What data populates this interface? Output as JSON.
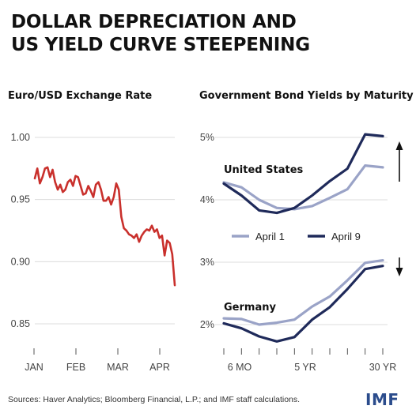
{
  "header": {
    "title_line1": "DOLLAR DEPRECIATION AND",
    "title_line2": "US YIELD CURVE STEEPENING"
  },
  "colors": {
    "red": "#c9302c",
    "light_blue": "#9aa3c7",
    "navy": "#1f2a5a",
    "grid": "#dcdcdc",
    "imf_blue": "#2b4c8c"
  },
  "chart_data": [
    {
      "type": "line",
      "title": "Euro/USD Exchange Rate",
      "ylim": [
        0.85,
        1.0
      ],
      "yticks": [
        "1.00",
        "0.95",
        "0.90",
        "0.85"
      ],
      "xticks": [
        "JAN",
        "FEB",
        "MAR",
        "APR"
      ],
      "grid": true,
      "series": [
        {
          "values": [
            0.967,
            0.975,
            0.963,
            0.968,
            0.975,
            0.976,
            0.968,
            0.974,
            0.964,
            0.958,
            0.962,
            0.956,
            0.958,
            0.964,
            0.966,
            0.961,
            0.969,
            0.968,
            0.961,
            0.954,
            0.955,
            0.961,
            0.957,
            0.952,
            0.962,
            0.964,
            0.958,
            0.949,
            0.949,
            0.952,
            0.946,
            0.952,
            0.963,
            0.958,
            0.936,
            0.927,
            0.925,
            0.922,
            0.921,
            0.919,
            0.922,
            0.916,
            0.921,
            0.924,
            0.926,
            0.925,
            0.929,
            0.924,
            0.926,
            0.919,
            0.921,
            0.905,
            0.917,
            0.915,
            0.906,
            0.881
          ]
        }
      ]
    },
    {
      "type": "line",
      "title": "Government Bond Yields by Maturity",
      "yticks": [
        "5%",
        "4%",
        "3%",
        "2%"
      ],
      "xticks": [
        "6 MO",
        "5 YR",
        "30 YR"
      ],
      "legend": [
        "April 1",
        "April 9"
      ],
      "legend_placement": "center",
      "grid": true,
      "panels": [
        {
          "name": "United States",
          "ylim": [
            3.5,
            5.2
          ],
          "direction": "up",
          "series": [
            {
              "name": "April 1",
              "values": [
                4.28,
                4.2,
                4.0,
                3.87,
                3.85,
                3.9,
                4.03,
                4.17,
                4.55,
                4.52
              ]
            },
            {
              "name": "April 9",
              "values": [
                4.26,
                4.07,
                3.83,
                3.79,
                3.87,
                4.07,
                4.3,
                4.5,
                5.05,
                5.02
              ]
            }
          ]
        },
        {
          "name": "Germany",
          "ylim": [
            1.6,
            3.3
          ],
          "direction": "down",
          "series": [
            {
              "name": "April 1",
              "values": [
                2.1,
                2.09,
                2.0,
                2.03,
                2.08,
                2.29,
                2.45,
                2.71,
                2.99,
                3.03
              ]
            },
            {
              "name": "April 9",
              "values": [
                2.02,
                1.94,
                1.81,
                1.73,
                1.8,
                2.08,
                2.28,
                2.57,
                2.89,
                2.94
              ]
            }
          ]
        }
      ]
    }
  ],
  "footer": {
    "sources": "Sources: Haver Analytics; Bloomberg Financial, L.P.; and IMF staff calculations.",
    "logo": "IMF"
  }
}
